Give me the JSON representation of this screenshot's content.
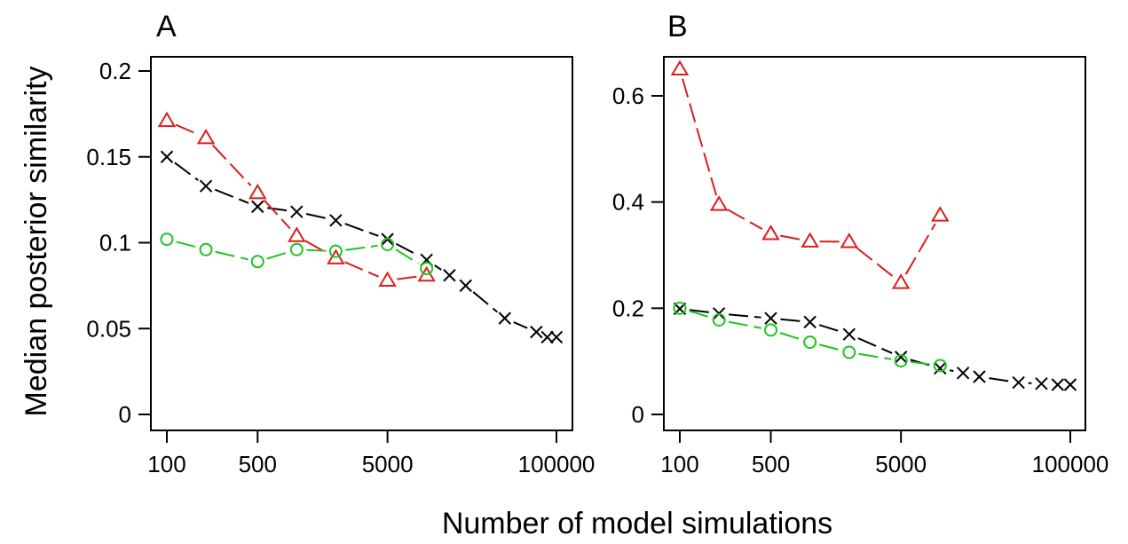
{
  "figure": {
    "ylabel": "Median posterior similarity",
    "xlabel": "Number of model simulations"
  },
  "colors": {
    "black_series": "#000000",
    "red_series": "#dd1c1c",
    "green_series": "#1ec41e"
  },
  "chart_data": [
    {
      "type": "line",
      "panel_label": "A",
      "x_scale": "log",
      "xlim": [
        100,
        100000
      ],
      "ylim": [
        0,
        0.2
      ],
      "x_ticks": [
        100,
        500,
        5000,
        100000
      ],
      "x_tick_labels": [
        "100",
        "500",
        "5000",
        "100000"
      ],
      "y_ticks": [
        0,
        0.05,
        0.1,
        0.15,
        0.2
      ],
      "y_tick_labels": [
        "0",
        "0.05",
        "0.1",
        "0.15",
        "0.2"
      ],
      "grid": false,
      "legend": "none",
      "series": [
        {
          "marker": "cross",
          "color": "#000000",
          "line": "dashed",
          "x": [
            100,
            200,
            500,
            1000,
            2000,
            5000,
            10000,
            15000,
            20000,
            40000,
            70000,
            85000,
            100000
          ],
          "y": [
            0.15,
            0.133,
            0.121,
            0.118,
            0.113,
            0.102,
            0.09,
            0.081,
            0.075,
            0.056,
            0.048,
            0.045,
            0.045
          ]
        },
        {
          "marker": "triangle",
          "color": "#dd1c1c",
          "line": "dashed",
          "x": [
            100,
            200,
            500,
            1000,
            2000,
            5000,
            10000
          ],
          "y": [
            0.171,
            0.161,
            0.129,
            0.104,
            0.091,
            0.078,
            0.081
          ]
        },
        {
          "marker": "circle",
          "color": "#1ec41e",
          "line": "dashed",
          "x": [
            100,
            200,
            500,
            1000,
            2000,
            5000,
            10000
          ],
          "y": [
            0.102,
            0.096,
            0.089,
            0.096,
            0.095,
            0.099,
            0.085
          ]
        }
      ]
    },
    {
      "type": "line",
      "panel_label": "B",
      "x_scale": "log",
      "xlim": [
        100,
        100000
      ],
      "ylim": [
        0,
        0.65
      ],
      "x_ticks": [
        100,
        500,
        5000,
        100000
      ],
      "x_tick_labels": [
        "100",
        "500",
        "5000",
        "100000"
      ],
      "y_ticks": [
        0,
        0.2,
        0.4,
        0.6
      ],
      "y_tick_labels": [
        "0",
        "0.2",
        "0.4",
        "0.6"
      ],
      "grid": false,
      "legend": "none",
      "series": [
        {
          "marker": "cross",
          "color": "#000000",
          "line": "dashed",
          "x": [
            100,
            200,
            500,
            1000,
            2000,
            5000,
            10000,
            15000,
            20000,
            40000,
            60000,
            80000,
            100000
          ],
          "y": [
            0.199,
            0.19,
            0.181,
            0.174,
            0.151,
            0.108,
            0.087,
            0.078,
            0.071,
            0.06,
            0.058,
            0.056,
            0.056
          ]
        },
        {
          "marker": "triangle",
          "color": "#dd1c1c",
          "line": "dashed",
          "x": [
            100,
            200,
            500,
            1000,
            2000,
            5000,
            10000
          ],
          "y": [
            0.65,
            0.395,
            0.34,
            0.326,
            0.325,
            0.248,
            0.375
          ]
        },
        {
          "marker": "circle",
          "color": "#1ec41e",
          "line": "dashed",
          "x": [
            100,
            200,
            500,
            1000,
            2000,
            5000,
            10000
          ],
          "y": [
            0.2,
            0.178,
            0.159,
            0.136,
            0.117,
            0.101,
            0.092
          ]
        }
      ]
    }
  ]
}
